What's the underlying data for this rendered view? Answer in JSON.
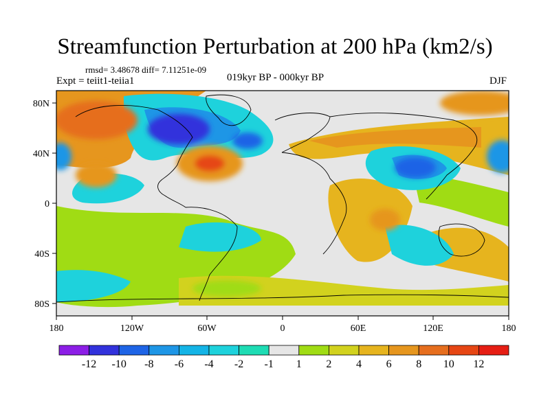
{
  "title": "Streamfunction Perturbation at 200 hPa (km2/s)",
  "stats": "rmsd= 3.48678 diff= 7.11251e-09",
  "experiment": "Expt = teiit1-teiia1",
  "period": "019kyr BP - 000kyr BP",
  "season": "DJF",
  "lat_ticks": [
    "80N",
    "40N",
    "0",
    "40S",
    "80S"
  ],
  "lon_ticks": [
    "180",
    "120W",
    "60W",
    "0",
    "60E",
    "120E",
    "180"
  ],
  "colorbar": {
    "labels": [
      "-12",
      "-10",
      "-8",
      "-6",
      "-4",
      "-2",
      "-1",
      "1",
      "2",
      "4",
      "6",
      "8",
      "10",
      "12"
    ],
    "colors": [
      "#8c1ee6",
      "#3232dc",
      "#1e64e6",
      "#1e96e6",
      "#14b4e6",
      "#1ed2dc",
      "#1edcb4",
      "#e6e6e6",
      "#a0dc14",
      "#d2d21e",
      "#e6b41e",
      "#e6961e",
      "#e66e1e",
      "#e64614",
      "#e61e14"
    ]
  },
  "colors": {
    "land_outline": "#000000",
    "background": "#ffffff",
    "neutral": "#e6e6e6"
  }
}
